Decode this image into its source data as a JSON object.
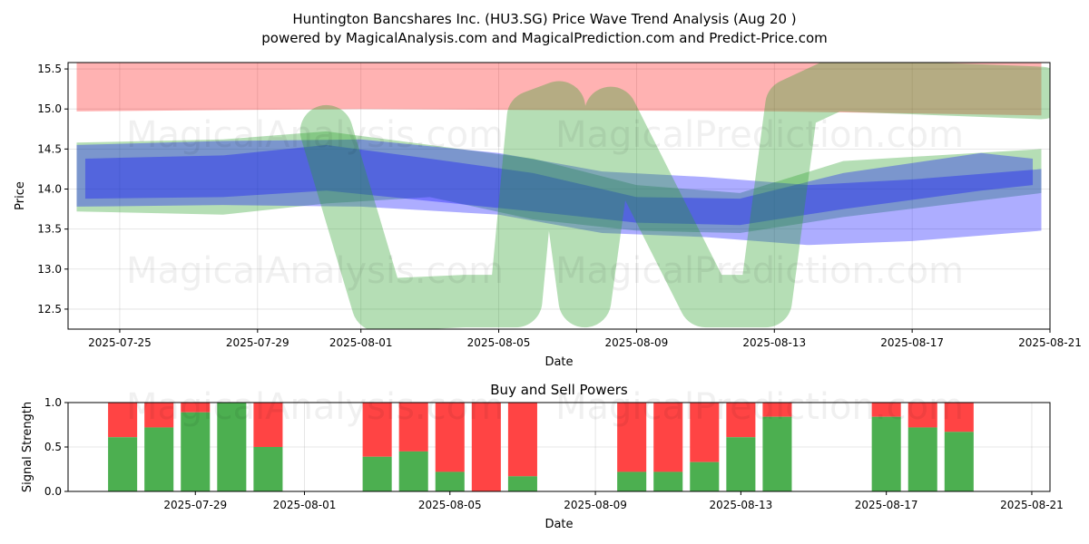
{
  "figure": {
    "title_line1": "Huntington Bancshares Inc. (HU3.SG) Price Wave Trend Analysis (Aug 20 )",
    "title_line2": "powered by MagicalAnalysis.com and MagicalPrediction.com and Predict-Price.com",
    "watermarks": [
      "MagicalAnalysis.com",
      "MagicalPrediction.com"
    ]
  },
  "chart_data": [
    {
      "type": "area",
      "title": "",
      "xlabel": "Date",
      "ylabel": "Price",
      "x_range": [
        "2025-07-23T12:00",
        "2025-08-21T00:00"
      ],
      "ylim": [
        12.25,
        15.58
      ],
      "yticks": [
        12.5,
        13.0,
        13.5,
        14.0,
        14.5,
        15.0,
        15.5
      ],
      "xticks": [
        "2025-07-25",
        "2025-07-29",
        "2025-08-01",
        "2025-08-05",
        "2025-08-09",
        "2025-08-13",
        "2025-08-17",
        "2025-08-21"
      ],
      "grid": true,
      "colors": {
        "red_band": "#ff0000",
        "green_band": "#2ca02c",
        "blue_band": "#0000ff"
      },
      "bands": [
        {
          "color": "red",
          "x": [
            "2025-07-23T18:00",
            "2025-08-01",
            "2025-08-13",
            "2025-08-20T18:00"
          ],
          "upper": [
            15.58,
            15.58,
            15.58,
            15.58
          ],
          "lower": [
            14.97,
            15.0,
            14.97,
            14.92
          ]
        },
        {
          "color": "green",
          "x": [
            "2025-07-23T18:00",
            "2025-07-28",
            "2025-07-31",
            "2025-08-03",
            "2025-08-06",
            "2025-08-09",
            "2025-08-12",
            "2025-08-15",
            "2025-08-20T18:00"
          ],
          "upper": [
            14.58,
            14.62,
            14.72,
            14.55,
            14.38,
            14.05,
            13.95,
            14.35,
            14.5
          ],
          "lower": [
            13.72,
            13.68,
            13.82,
            13.9,
            13.62,
            13.48,
            13.45,
            13.65,
            13.95
          ]
        },
        {
          "color": "blue",
          "x": [
            "2025-07-23T18:00",
            "2025-07-28",
            "2025-08-01",
            "2025-08-05",
            "2025-08-08",
            "2025-08-11",
            "2025-08-14",
            "2025-08-17",
            "2025-08-20T18:00"
          ],
          "upper": [
            14.55,
            14.6,
            14.62,
            14.45,
            14.22,
            14.15,
            14.05,
            14.12,
            14.25
          ],
          "lower": [
            13.78,
            13.8,
            13.78,
            13.68,
            13.45,
            13.4,
            13.3,
            13.35,
            13.48
          ]
        },
        {
          "color": "blue",
          "x": [
            "2025-07-24",
            "2025-07-28",
            "2025-07-31",
            "2025-08-03",
            "2025-08-06",
            "2025-08-09",
            "2025-08-12",
            "2025-08-15",
            "2025-08-19",
            "2025-08-20T12:00"
          ],
          "upper": [
            14.38,
            14.42,
            14.55,
            14.38,
            14.2,
            13.9,
            13.88,
            14.2,
            14.45,
            14.38
          ],
          "lower": [
            13.88,
            13.9,
            13.98,
            13.85,
            13.72,
            13.58,
            13.55,
            13.75,
            13.98,
            14.05
          ]
        }
      ],
      "wave": {
        "color": "green",
        "x": [
          "2025-07-31T00:00",
          "2025-08-01T12:00",
          "2025-08-04T00:00",
          "2025-08-05T12:00",
          "2025-08-06T00:00",
          "2025-08-06T18:00",
          "2025-08-07T12:00",
          "2025-08-08T06:00",
          "2025-08-11T00:00",
          "2025-08-12T18:00",
          "2025-08-13T12:00",
          "2025-08-14T18:00",
          "2025-08-20T18:00"
        ],
        "y": [
          14.72,
          12.55,
          12.6,
          12.6,
          14.9,
          15.02,
          12.6,
          14.95,
          12.6,
          12.6,
          15.05,
          15.3,
          15.2
        ]
      }
    },
    {
      "type": "bar",
      "title": "Buy and Sell Powers",
      "xlabel": "Date",
      "ylabel": "Signal Strength",
      "ylim": [
        0,
        1
      ],
      "yticks": [
        0.0,
        0.5,
        1.0
      ],
      "xticks": [
        "2025-07-29",
        "2025-08-01",
        "2025-08-05",
        "2025-08-09",
        "2025-08-13",
        "2025-08-17",
        "2025-08-21"
      ],
      "grid": true,
      "colors": {
        "buy": "#4caf50",
        "sell": "#ff4444"
      },
      "dates": [
        "2025-07-27",
        "2025-07-28",
        "2025-07-29",
        "2025-07-30",
        "2025-07-31",
        "2025-08-03",
        "2025-08-04",
        "2025-08-05",
        "2025-08-06",
        "2025-08-07",
        "2025-08-10",
        "2025-08-11",
        "2025-08-12",
        "2025-08-13",
        "2025-08-14",
        "2025-08-17",
        "2025-08-18",
        "2025-08-19"
      ],
      "buy": [
        0.61,
        0.72,
        0.89,
        1.0,
        0.5,
        0.39,
        0.45,
        0.22,
        0.0,
        0.17,
        0.22,
        0.22,
        0.33,
        0.61,
        0.84,
        0.84,
        0.72,
        0.67
      ]
    }
  ]
}
